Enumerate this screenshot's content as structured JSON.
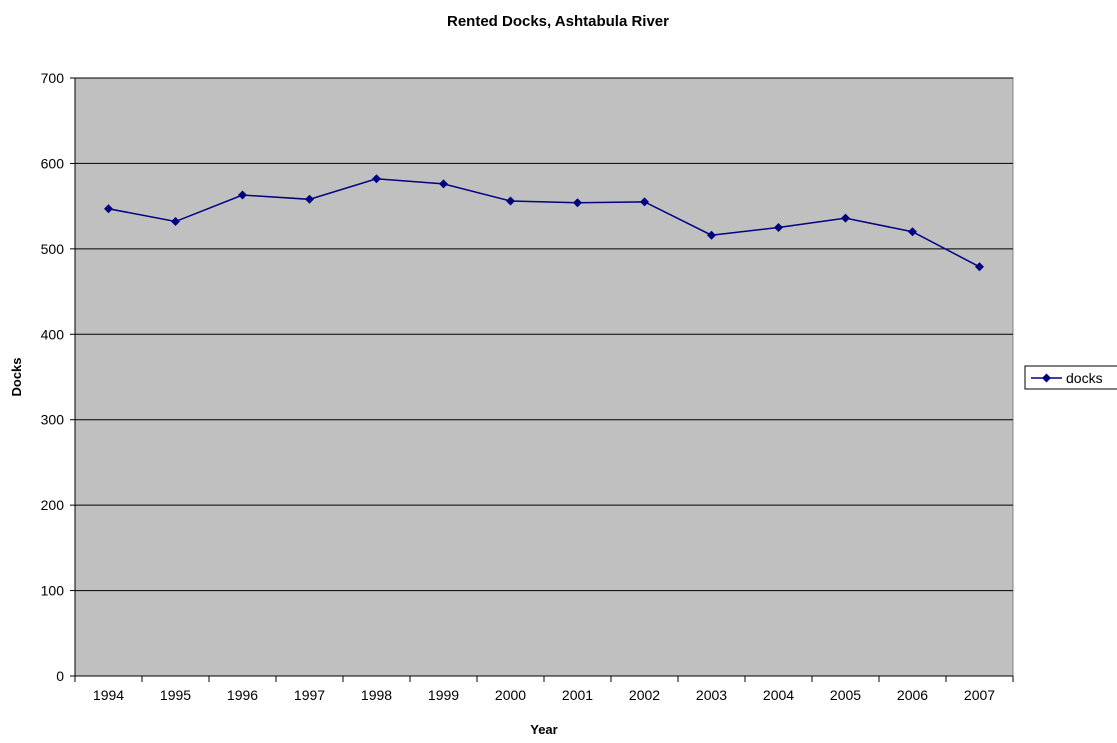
{
  "chart_data": {
    "type": "line",
    "title": "Rented Docks, Ashtabula River",
    "xlabel": "Year",
    "ylabel": "Docks",
    "categories": [
      "1994",
      "1995",
      "1996",
      "1997",
      "1998",
      "1999",
      "2000",
      "2001",
      "2002",
      "2003",
      "2004",
      "2005",
      "2006",
      "2007"
    ],
    "series": [
      {
        "name": "docks",
        "values": [
          547,
          532,
          563,
          558,
          582,
          576,
          556,
          554,
          555,
          516,
          525,
          536,
          520,
          479
        ],
        "color": "#000080",
        "marker": "diamond"
      }
    ],
    "ylim": [
      0,
      700
    ],
    "yticks": [
      0,
      100,
      200,
      300,
      400,
      500,
      600,
      700
    ],
    "grid": true,
    "plot_background": "#c0c0c0",
    "gridline_color": "#000000",
    "legend_position": "right"
  }
}
